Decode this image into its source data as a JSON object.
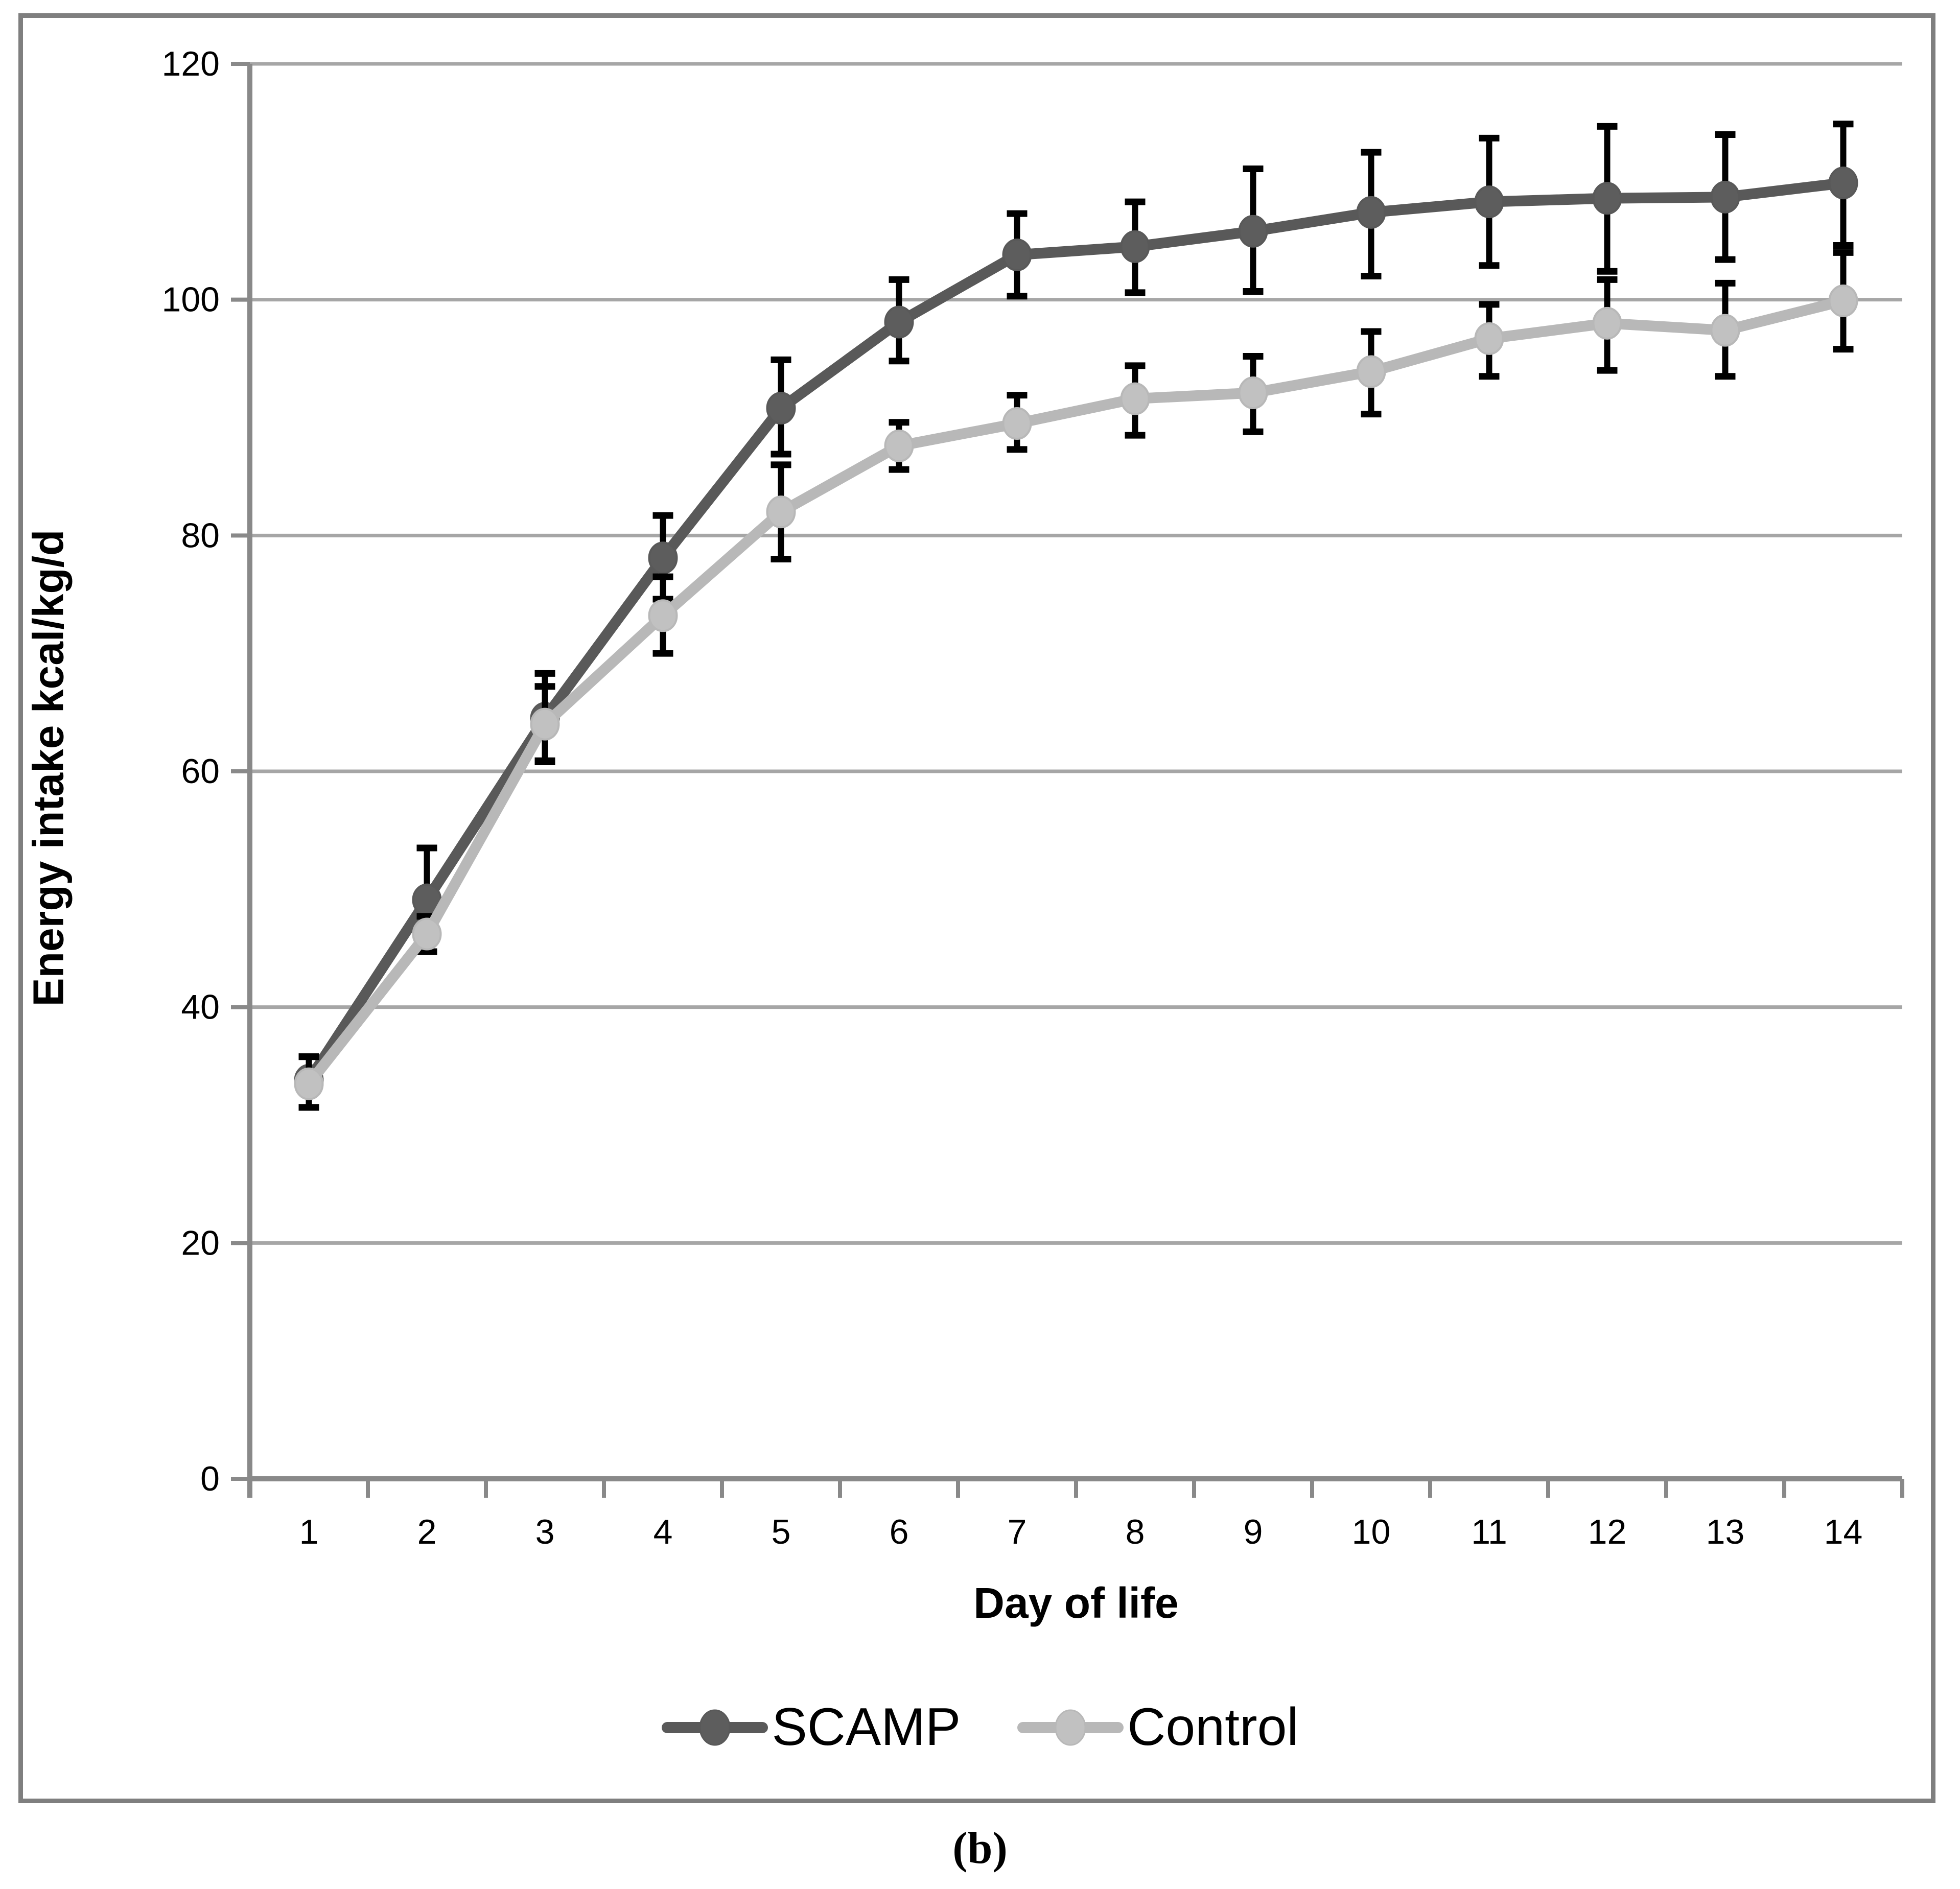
{
  "figure": {
    "caption": "(b)",
    "y_axis_title": "Energy intake kcal/kg/d",
    "x_axis_title": "Day of life"
  },
  "chart_data": {
    "type": "line",
    "title": "",
    "xlabel": "Day of life",
    "ylabel": "Energy intake kcal/kg/d",
    "x": [
      1,
      2,
      3,
      4,
      5,
      6,
      7,
      8,
      9,
      10,
      11,
      12,
      13,
      14
    ],
    "x_tick_labels": [
      "1",
      "2",
      "3",
      "4",
      "5",
      "6",
      "7",
      "8",
      "9",
      "10",
      "11",
      "12",
      "13",
      "14"
    ],
    "ylim": [
      0,
      120
    ],
    "y_ticks": [
      0,
      20,
      40,
      60,
      80,
      100,
      120
    ],
    "grid": true,
    "legend_position": "bottom",
    "error_bars": true,
    "series": [
      {
        "name": "SCAMP",
        "color": "#595959",
        "marker_fill": "#5d5d5d",
        "values": [
          33.8,
          49.1,
          64.5,
          78.1,
          90.8,
          98.1,
          103.8,
          104.5,
          105.8,
          107.4,
          108.3,
          108.6,
          108.7,
          109.9
        ],
        "error_lower": [
          31.5,
          44.7,
          60.9,
          74.6,
          86.9,
          94.8,
          100.3,
          100.6,
          100.7,
          102.0,
          102.9,
          102.4,
          103.4,
          104.6
        ],
        "error_upper": [
          35.8,
          53.5,
          68.3,
          81.7,
          94.9,
          101.7,
          107.3,
          108.3,
          111.1,
          112.5,
          113.7,
          114.7,
          114.0,
          114.9
        ]
      },
      {
        "name": "Control",
        "color": "#b8b8b8",
        "marker_fill": "#c1c1c1",
        "values": [
          33.5,
          46.2,
          64.0,
          73.2,
          82.0,
          87.6,
          89.5,
          91.6,
          92.1,
          93.9,
          96.7,
          98.0,
          97.4,
          99.9
        ],
        "error_lower": [
          31.5,
          44.7,
          60.8,
          70.0,
          78.0,
          85.6,
          87.3,
          88.5,
          88.8,
          90.3,
          93.5,
          94.0,
          93.5,
          95.8
        ],
        "error_upper": [
          35.8,
          47.7,
          67.2,
          76.5,
          86.0,
          89.6,
          91.9,
          94.4,
          95.2,
          97.3,
          99.6,
          101.7,
          101.4,
          104.0
        ]
      }
    ]
  },
  "style_colors": {
    "gridline": "#a6a6a6",
    "axis": "#898989",
    "frame": "#7f7f7f",
    "error_bar": "#000000",
    "text": "#000000"
  }
}
